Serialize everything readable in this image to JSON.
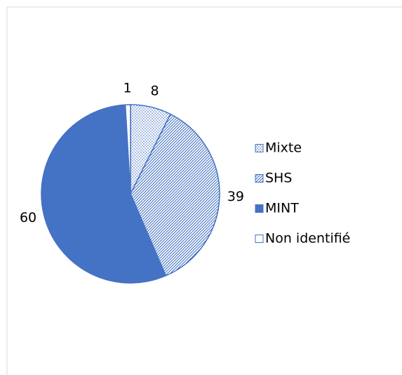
{
  "chart_data": {
    "type": "pie",
    "categories": [
      "Mixte",
      "SHS",
      "MINT",
      "Non identifié"
    ],
    "values": [
      8,
      39,
      60,
      1
    ],
    "color": "#4472c4",
    "patterns": [
      "dots",
      "diagonal",
      "solid",
      "none"
    ],
    "legend": "right"
  }
}
